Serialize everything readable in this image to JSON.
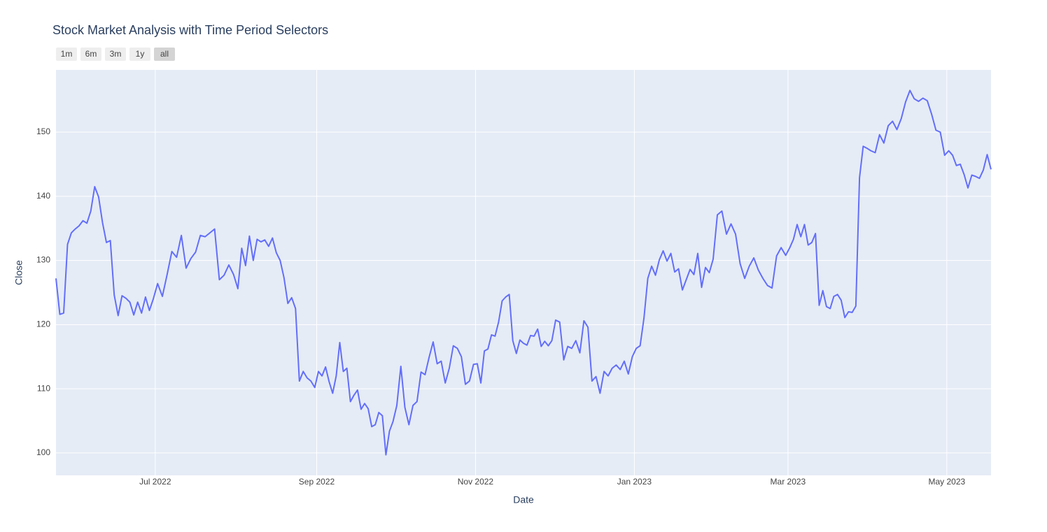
{
  "chart_data": {
    "type": "line",
    "title": "Stock Market Analysis with Time Period Selectors",
    "xlabel": "Date",
    "ylabel": "Close",
    "buttons": [
      "1m",
      "6m",
      "3m",
      "1y",
      "all"
    ],
    "active_button": 4,
    "color": "#636efa",
    "grid": true,
    "ylim": [
      96.5,
      159.7
    ],
    "yticks": [
      100,
      110,
      120,
      130,
      140,
      150
    ],
    "xticks": [
      {
        "value": "2022-07",
        "label": "Jul 2022"
      },
      {
        "value": "2022-09",
        "label": "Sep 2022"
      },
      {
        "value": "2022-11",
        "label": "Nov 2022"
      },
      {
        "value": "2023-01",
        "label": "Jan 2023"
      },
      {
        "value": "2023-03",
        "label": "Mar 2023"
      },
      {
        "value": "2023-05",
        "label": "May 2023"
      }
    ],
    "x": [
      "2022-05",
      "2022-05",
      "2022-05",
      "2022-05",
      "2022-05",
      "2022-05",
      "2022-06",
      "2022-06",
      "2022-06",
      "2022-06",
      "2022-06",
      "2022-06",
      "2022-06",
      "2022-06",
      "2022-06",
      "2022-06",
      "2022-06",
      "2022-06",
      "2022-06",
      "2022-06",
      "2022-06",
      "2022-06",
      "2022-06",
      "2022-06",
      "2022-06",
      "2022-06",
      "2022-07",
      "2022-07",
      "2022-07",
      "2022-07",
      "2022-07",
      "2022-07",
      "2022-07",
      "2022-07",
      "2022-07",
      "2022-07",
      "2022-07",
      "2022-07",
      "2022-07",
      "2022-07",
      "2022-07",
      "2022-07",
      "2022-07",
      "2022-08",
      "2022-08",
      "2022-08",
      "2022-08",
      "2022-08",
      "2022-08",
      "2022-08",
      "2022-08",
      "2022-08",
      "2022-08",
      "2022-08",
      "2022-08",
      "2022-08",
      "2022-08",
      "2022-08",
      "2022-08",
      "2022-08",
      "2022-08",
      "2022-08",
      "2022-08",
      "2022-08",
      "2022-09",
      "2022-09",
      "2022-09",
      "2022-09",
      "2022-09",
      "2022-09",
      "2022-09",
      "2022-09",
      "2022-09",
      "2022-09",
      "2022-09",
      "2022-09",
      "2022-09",
      "2022-09",
      "2022-09",
      "2022-09",
      "2022-09",
      "2022-09",
      "2022-09",
      "2022-09",
      "2022-09",
      "2022-09",
      "2022-10",
      "2022-10",
      "2022-10",
      "2022-10",
      "2022-10",
      "2022-10",
      "2022-10",
      "2022-10",
      "2022-10",
      "2022-10",
      "2022-10",
      "2022-10",
      "2022-10",
      "2022-10",
      "2022-10",
      "2022-10",
      "2022-10",
      "2022-10",
      "2022-10",
      "2022-10",
      "2022-11",
      "2022-11",
      "2022-11",
      "2022-11",
      "2022-11",
      "2022-11",
      "2022-11",
      "2022-11",
      "2022-11",
      "2022-11",
      "2022-11",
      "2022-11",
      "2022-11",
      "2022-11",
      "2022-11",
      "2022-11",
      "2022-11",
      "2022-11",
      "2022-11",
      "2022-11",
      "2022-11",
      "2022-11",
      "2022-12",
      "2022-12",
      "2022-12",
      "2022-12",
      "2022-12",
      "2022-12",
      "2022-12",
      "2022-12",
      "2022-12",
      "2022-12",
      "2022-12",
      "2022-12",
      "2022-12",
      "2022-12",
      "2022-12",
      "2022-12",
      "2022-12",
      "2022-12",
      "2022-12",
      "2022-12",
      "2023-01",
      "2023-01",
      "2023-01",
      "2023-01",
      "2023-01",
      "2023-01",
      "2023-01",
      "2023-01",
      "2023-01",
      "2023-01",
      "2023-01",
      "2023-01",
      "2023-01",
      "2023-01",
      "2023-01",
      "2023-01",
      "2023-01",
      "2023-01",
      "2023-01",
      "2023-01",
      "2023-01",
      "2023-02",
      "2023-02",
      "2023-02",
      "2023-02",
      "2023-02",
      "2023-02",
      "2023-02",
      "2023-02",
      "2023-02",
      "2023-02",
      "2023-02",
      "2023-02",
      "2023-02",
      "2023-02",
      "2023-02",
      "2023-02",
      "2023-03",
      "2023-03",
      "2023-03",
      "2023-03",
      "2023-03",
      "2023-03",
      "2023-03",
      "2023-03",
      "2023-03",
      "2023-03",
      "2023-03",
      "2023-03",
      "2023-03",
      "2023-03",
      "2023-03",
      "2023-03",
      "2023-03",
      "2023-03",
      "2023-03",
      "2023-03",
      "2023-03",
      "2023-03",
      "2023-04",
      "2023-04",
      "2023-04",
      "2023-04",
      "2023-04",
      "2023-04",
      "2023-04",
      "2023-04",
      "2023-04",
      "2023-04",
      "2023-04",
      "2023-04",
      "2023-04",
      "2023-04",
      "2023-04",
      "2023-04",
      "2023-04",
      "2023-04",
      "2023-05",
      "2023-05",
      "2023-05",
      "2023-05",
      "2023-05",
      "2023-05",
      "2023-05",
      "2023-05",
      "2023-05",
      "2023-05",
      "2023-05",
      "2023-05"
    ],
    "values": [
      127.2,
      121.6,
      121.8,
      132.5,
      134.3,
      134.9,
      135.4,
      136.2,
      135.8,
      137.7,
      141.5,
      139.9,
      135.9,
      132.8,
      133.1,
      124.6,
      121.4,
      124.5,
      124.1,
      123.5,
      121.5,
      123.5,
      121.8,
      124.3,
      122.2,
      124.0,
      126.4,
      124.4,
      127.8,
      131.4,
      130.5,
      133.9,
      128.8,
      130.3,
      131.3,
      133.9,
      133.7,
      134.3,
      134.9,
      127.0,
      127.7,
      129.3,
      127.8,
      125.6,
      131.9,
      129.2,
      133.8,
      130.0,
      133.3,
      132.9,
      133.2,
      132.2,
      133.5,
      131.2,
      130.0,
      127.3,
      123.3,
      124.2,
      122.5,
      111.2,
      112.7,
      111.7,
      111.2,
      110.2,
      112.7,
      112.0,
      113.4,
      111.1,
      109.3,
      112.0,
      117.2,
      112.7,
      113.2,
      108.0,
      109.0,
      109.8,
      106.8,
      107.7,
      106.9,
      104.1,
      104.4,
      106.3,
      105.8,
      99.7,
      103.4,
      104.9,
      107.4,
      113.5,
      107.1,
      104.4,
      107.4,
      108.0,
      112.6,
      112.2,
      114.9,
      117.3,
      113.9,
      114.3,
      110.9,
      113.2,
      116.7,
      116.3,
      115.0,
      110.7,
      111.2,
      113.8,
      113.9,
      110.9,
      115.9,
      116.2,
      118.4,
      118.2,
      120.4,
      123.7,
      124.3,
      124.7,
      117.5,
      115.5,
      117.6,
      117.1,
      116.8,
      118.3,
      118.2,
      119.3,
      116.6,
      117.4,
      116.7,
      117.5,
      120.7,
      120.4,
      114.5,
      116.6,
      116.3,
      117.5,
      115.6,
      120.6,
      119.6,
      111.2,
      111.9,
      109.3,
      112.7,
      112.0,
      113.2,
      113.7,
      113.0,
      114.3,
      112.3,
      115.0,
      116.3,
      116.7,
      121.0,
      127.2,
      129.1,
      127.7,
      130.1,
      131.5,
      129.9,
      131.1,
      128.2,
      128.7,
      125.4,
      127.0,
      128.6,
      127.8,
      131.1,
      125.8,
      128.9,
      128.1,
      130.2,
      137.1,
      137.7,
      134.1,
      135.7,
      134.1,
      129.5,
      127.2,
      129.1,
      130.4,
      128.5,
      127.2,
      126.1,
      125.7,
      130.7,
      132.0,
      130.8,
      132.0,
      133.3,
      135.6,
      133.7,
      135.6,
      132.4,
      132.8,
      134.2,
      123.0,
      125.3,
      122.8,
      122.5,
      124.4,
      124.7,
      123.8,
      121.1,
      122.0,
      121.9,
      122.9,
      142.9,
      147.8,
      147.5,
      147.1,
      146.8,
      149.6,
      148.3,
      151.0,
      151.7,
      150.4,
      152.1,
      154.7,
      156.5,
      155.2,
      154.8,
      155.3,
      154.9,
      152.8,
      150.3,
      150.0,
      146.4,
      147.1,
      146.4,
      144.8,
      145.0,
      143.4,
      141.3,
      143.3,
      143.1,
      142.8,
      144.1,
      146.5,
      144.2
    ]
  }
}
